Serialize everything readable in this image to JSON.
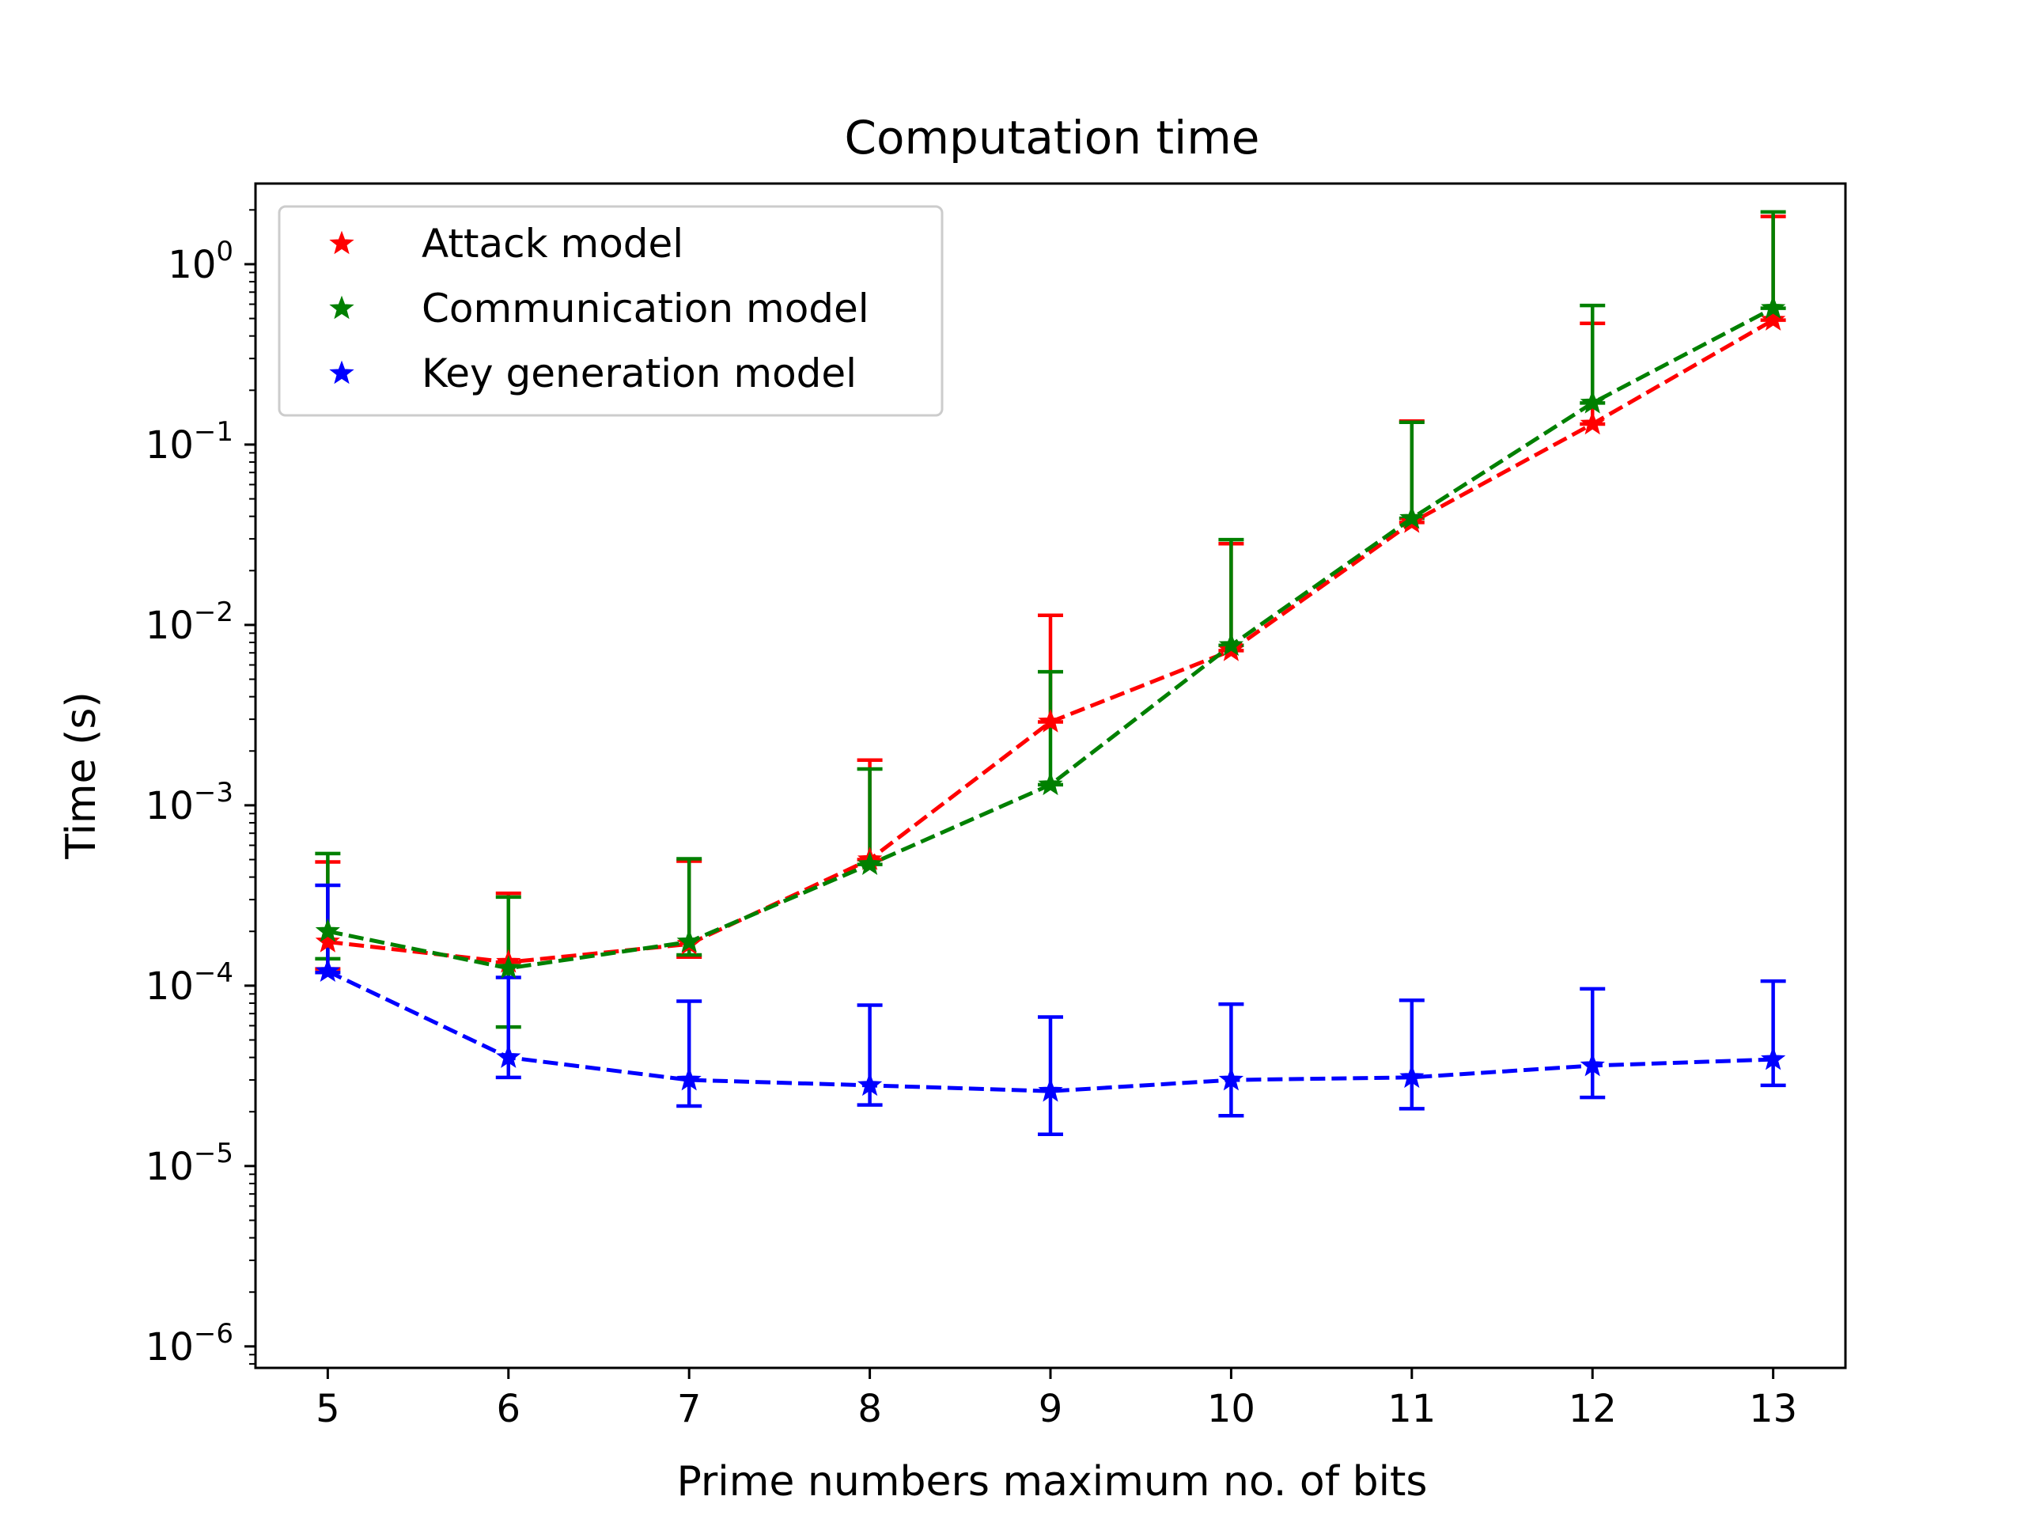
{
  "chart_data": {
    "type": "line",
    "title": "Computation time",
    "xlabel": "Prime numbers maximum no. of bits",
    "ylabel": "Time (s)",
    "yscale": "log",
    "xlim": [
      4.6,
      13.4
    ],
    "ylim": [
      7.6e-07,
      2.8
    ],
    "x": [
      5,
      6,
      7,
      8,
      9,
      10,
      11,
      12,
      13
    ],
    "xticks": [
      "5",
      "6",
      "7",
      "8",
      "9",
      "10",
      "11",
      "12",
      "13"
    ],
    "yticks": [
      {
        "value": 1e-06,
        "base": "10",
        "exp": "−6"
      },
      {
        "value": 1e-05,
        "base": "10",
        "exp": "−5"
      },
      {
        "value": 0.0001,
        "base": "10",
        "exp": "−4"
      },
      {
        "value": 0.001,
        "base": "10",
        "exp": "−3"
      },
      {
        "value": 0.01,
        "base": "10",
        "exp": "−2"
      },
      {
        "value": 0.1,
        "base": "10",
        "exp": "−1"
      },
      {
        "value": 1,
        "base": "10",
        "exp": "0"
      }
    ],
    "grid": false,
    "legend_position": "upper-left",
    "series": [
      {
        "name": "Attack model",
        "color": "#ff0000",
        "marker": "star",
        "linestyle": "dashed",
        "values": [
          0.000175,
          0.000135,
          0.00017,
          0.0005,
          0.0029,
          0.0072,
          0.037,
          0.13,
          0.49
        ],
        "err_lower": [
          5.1e-05,
          1e-09,
          2.6e-05,
          1e-09,
          1e-09,
          1e-09,
          1e-09,
          1e-09,
          1e-09
        ],
        "err_upper": [
          0.00031,
          0.00019,
          0.00032,
          0.00128,
          0.0084,
          0.021,
          0.098,
          0.34,
          1.35
        ]
      },
      {
        "name": "Communication model",
        "color": "#008000",
        "marker": "star",
        "linestyle": "dashed",
        "values": [
          0.0002,
          0.000125,
          0.000175,
          0.00047,
          0.0013,
          0.0077,
          0.039,
          0.17,
          0.57
        ],
        "err_lower": [
          5.9e-05,
          6.6e-05,
          2.7e-05,
          1e-09,
          1e-09,
          1e-09,
          1e-09,
          1e-09,
          1e-09
        ],
        "err_upper": [
          0.00034,
          0.000185,
          0.00033,
          0.00112,
          0.0042,
          0.022,
          0.094,
          0.42,
          1.38
        ]
      },
      {
        "name": "Key generation model",
        "color": "#0000ff",
        "marker": "star",
        "linestyle": "dashed",
        "values": [
          0.00012,
          4e-05,
          3e-05,
          2.8e-05,
          2.6e-05,
          3e-05,
          3.1e-05,
          3.6e-05,
          3.9e-05
        ],
        "err_lower": [
          1.8e-06,
          9e-06,
          8.5e-06,
          6.2e-06,
          1.1e-05,
          1.1e-05,
          1.02e-05,
          1.2e-05,
          1.1e-05
        ],
        "err_upper": [
          0.00024,
          7.1e-05,
          5.2e-05,
          5e-05,
          4.1e-05,
          4.9e-05,
          5.2e-05,
          6e-05,
          6.7e-05
        ]
      }
    ]
  }
}
